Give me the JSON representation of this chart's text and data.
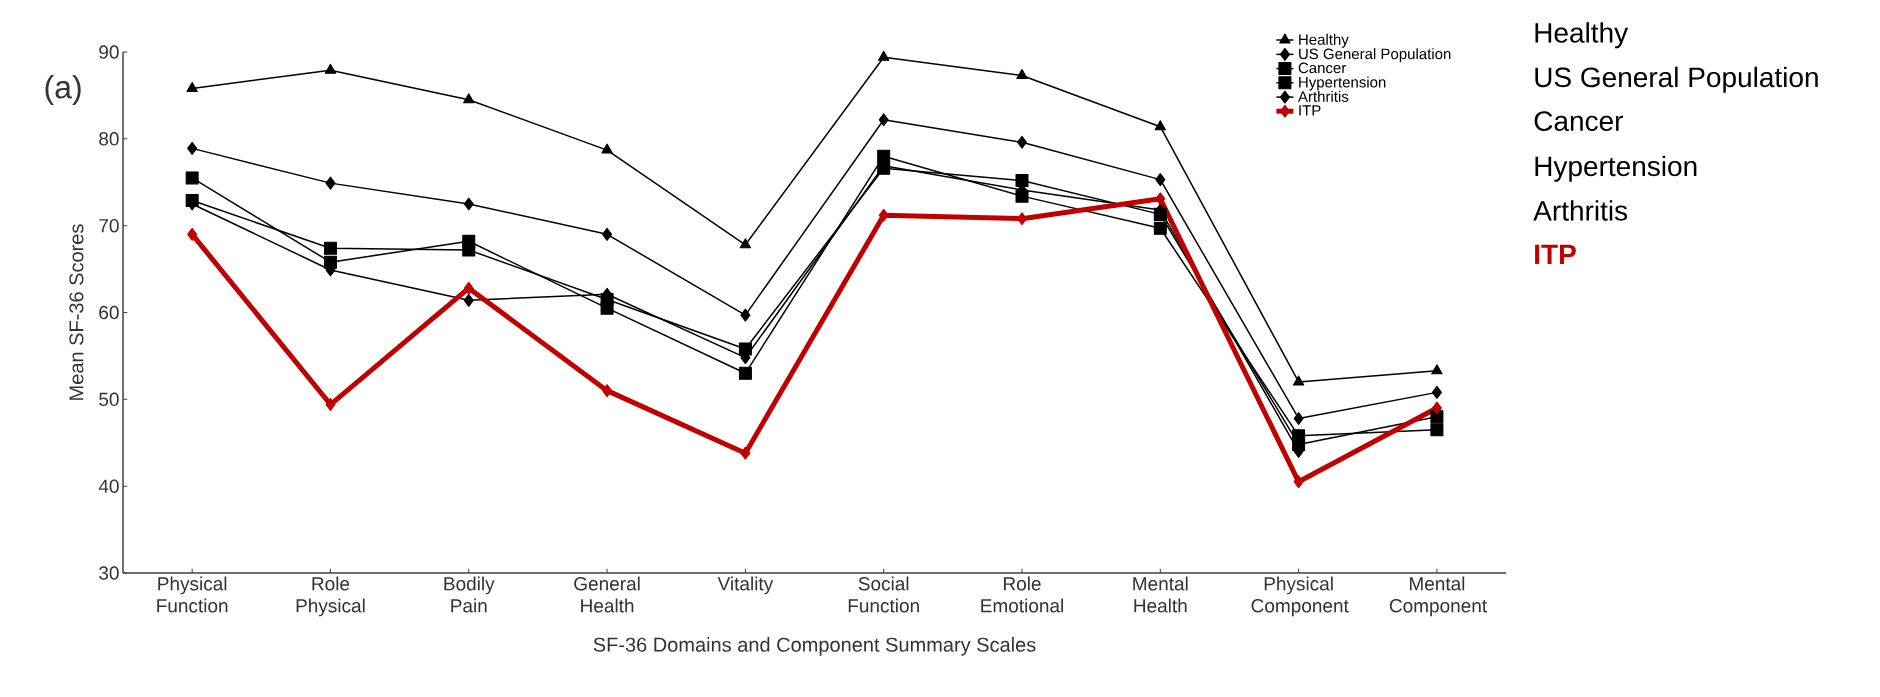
{
  "chart_data": {
    "type": "line",
    "xlabel": "SF-36 Domains and Component Summary Scales",
    "ylabel": "Mean SF-36 Scores",
    "categories": [
      "Physical Function",
      "Role Physical",
      "Bodily Pain",
      "General Health",
      "Vitality",
      "Social Function",
      "Role Emotional",
      "Mental Health",
      "Physical Component",
      "Mental Component"
    ],
    "series": [
      {
        "name": "Healthy",
        "color": "#000000",
        "marker": "triangle",
        "values": [
          85.8,
          87.9,
          84.5,
          78.7,
          67.8,
          89.4,
          87.3,
          81.4,
          52.0,
          53.3
        ]
      },
      {
        "name": "US General Population",
        "color": "#000000",
        "marker": "diamond",
        "values": [
          78.9,
          74.9,
          72.5,
          69.0,
          59.7,
          82.2,
          79.6,
          75.3,
          47.8,
          50.8
        ]
      },
      {
        "name": "Cancer",
        "color": "#000000",
        "marker": "square",
        "values": [
          75.5,
          65.8,
          68.2,
          60.5,
          53.0,
          78.0,
          73.4,
          69.7,
          45.8,
          46.5
        ]
      },
      {
        "name": "Hypertension",
        "color": "#000000",
        "marker": "square",
        "values": [
          72.9,
          67.4,
          67.2,
          61.5,
          55.8,
          76.6,
          75.2,
          71.3,
          44.8,
          48.0
        ]
      },
      {
        "name": "Arthritis",
        "color": "#000000",
        "marker": "diamond",
        "values": [
          72.5,
          64.9,
          61.4,
          62.1,
          54.8,
          76.9,
          74.1,
          71.8,
          44.0,
          null
        ]
      },
      {
        "name": "ITP",
        "color": "#c00000",
        "marker": "diamond",
        "values": [
          69.0,
          49.4,
          62.8,
          51.0,
          43.8,
          71.2,
          70.8,
          73.1,
          40.5,
          49.0
        ]
      }
    ],
    "ylim": [
      30,
      90
    ],
    "yticks": [
      30,
      40,
      50,
      60,
      70,
      80,
      90
    ],
    "legend": "top right",
    "annotations": [
      "(a)",
      "Healthy",
      "US General Population",
      "Cancer",
      "Hypertension",
      "Arthritis",
      "**ITP**"
    ]
  }
}
